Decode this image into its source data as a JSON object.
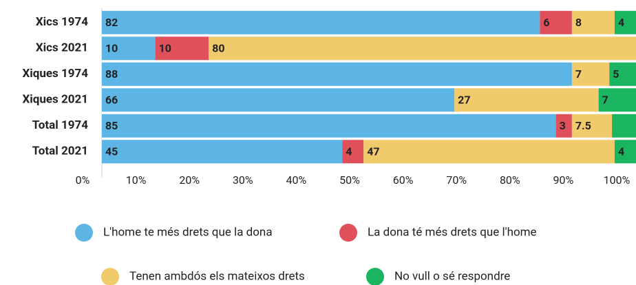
{
  "chart_data": {
    "type": "stacked-bar-horizontal",
    "categories": [
      "Xics 1974",
      "Xics 2021",
      "Xiques 1974",
      "Xiques 2021",
      "Total 1974",
      "Total 2021"
    ],
    "series": [
      {
        "name": "L'home te més drets que la dona",
        "color": "#5db5e6",
        "values": [
          82,
          10,
          88,
          66,
          85,
          45
        ]
      },
      {
        "name": "La dona té més drets que l'home",
        "color": "#e0505a",
        "values": [
          6,
          10,
          null,
          null,
          3,
          4
        ]
      },
      {
        "name": "Tenen ambdós els mateixos drets",
        "color": "#f1ca6c",
        "values": [
          8,
          80,
          7,
          27,
          7.5,
          47
        ]
      },
      {
        "name": "No vull o sé respondre",
        "color": "#1bb562",
        "values": [
          4,
          null,
          5,
          7,
          4.5,
          4
        ],
        "value_labels": [
          "4",
          null,
          "5",
          "7",
          null,
          "4"
        ]
      }
    ],
    "xlim": [
      0,
      100
    ],
    "xticks": [
      {
        "value": 0,
        "label": "0%"
      },
      {
        "value": 10,
        "label": "10%"
      },
      {
        "value": 20,
        "label": "20%"
      },
      {
        "value": 30,
        "label": "30%"
      },
      {
        "value": 40,
        "label": "40%"
      },
      {
        "value": 50,
        "label": "50%"
      },
      {
        "value": 60,
        "label": "60%"
      },
      {
        "value": 70,
        "label": "70%"
      },
      {
        "value": 80,
        "label": "80%"
      },
      {
        "value": 90,
        "label": "90%"
      },
      {
        "value": 100,
        "label": "100%"
      }
    ]
  }
}
